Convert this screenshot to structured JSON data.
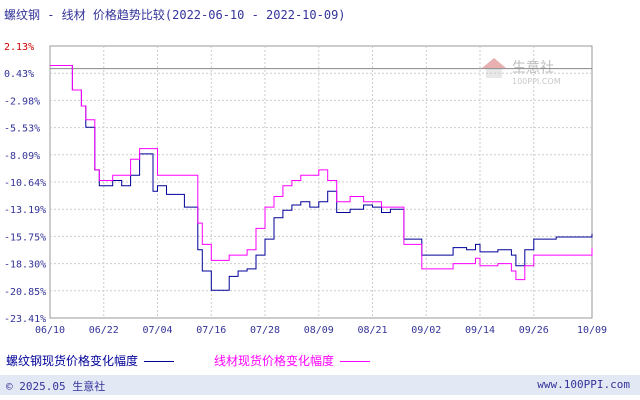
{
  "header": {
    "title": "螺纹钢 - 线材 价格趋势比较(2022-06-10 - 2022-10-09)"
  },
  "watermark": {
    "brand": "生意社",
    "url": "100PPI.COM"
  },
  "footer": {
    "copyright": "© 2025.05 生意社",
    "site": "www.100PPI.com"
  },
  "colors": {
    "series1": "#000099",
    "series2": "#ff00ff",
    "text": "#333399",
    "grid": "#cccccc",
    "zero_tick": "#cc0000"
  },
  "chart_data": {
    "type": "line",
    "title": "螺纹钢 - 线材 价格趋势比较(2022-06-10 - 2022-10-09)",
    "x_ticks": [
      "06/10",
      "06/22",
      "07/04",
      "07/16",
      "07/28",
      "08/09",
      "08/21",
      "09/02",
      "09/14",
      "09/26",
      "10/09"
    ],
    "y_ticks": [
      "2.13%",
      "0.43%",
      "-2.98%",
      "-5.53%",
      "-8.09%",
      "-10.64%",
      "-13.19%",
      "-15.75%",
      "-18.30%",
      "-20.85%",
      "-23.41%"
    ],
    "ylim": [
      -23.41,
      2.13
    ],
    "xlim": [
      "2022-06-10",
      "2022-10-09"
    ],
    "grid": true,
    "legend": "bottom",
    "series": [
      {
        "name": "螺纹钢现货价格变化幅度",
        "x": [
          "2022-06-10",
          "2022-06-13",
          "2022-06-15",
          "2022-06-17",
          "2022-06-18",
          "2022-06-19",
          "2022-06-20",
          "2022-06-21",
          "2022-06-24",
          "2022-06-26",
          "2022-06-28",
          "2022-06-30",
          "2022-07-02",
          "2022-07-03",
          "2022-07-04",
          "2022-07-06",
          "2022-07-08",
          "2022-07-10",
          "2022-07-13",
          "2022-07-14",
          "2022-07-16",
          "2022-07-18",
          "2022-07-20",
          "2022-07-22",
          "2022-07-24",
          "2022-07-26",
          "2022-07-28",
          "2022-07-30",
          "2022-08-01",
          "2022-08-03",
          "2022-08-05",
          "2022-08-07",
          "2022-08-09",
          "2022-08-11",
          "2022-08-13",
          "2022-08-16",
          "2022-08-19",
          "2022-08-21",
          "2022-08-23",
          "2022-08-25",
          "2022-08-28",
          "2022-09-01",
          "2022-09-04",
          "2022-09-08",
          "2022-09-11",
          "2022-09-13",
          "2022-09-14",
          "2022-09-18",
          "2022-09-21",
          "2022-09-22",
          "2022-09-24",
          "2022-09-26",
          "2022-10-01",
          "2022-10-05",
          "2022-10-09"
        ],
        "values": [
          0.3,
          0.3,
          -2.0,
          -3.5,
          -5.5,
          -5.5,
          -9.5,
          -11.0,
          -10.5,
          -11.0,
          -10.0,
          -8.0,
          -8.0,
          -11.5,
          -11.0,
          -11.8,
          -11.8,
          -13.0,
          -17.0,
          -19.0,
          -20.8,
          -20.8,
          -19.5,
          -19.0,
          -18.8,
          -17.5,
          -16.0,
          -14.0,
          -13.3,
          -12.8,
          -12.5,
          -13.0,
          -12.5,
          -11.5,
          -13.5,
          -13.2,
          -12.8,
          -13.0,
          -13.5,
          -13.2,
          -16.0,
          -17.5,
          -17.5,
          -16.8,
          -17.0,
          -16.5,
          -17.2,
          -17.0,
          -17.5,
          -18.5,
          -17.0,
          -16.0,
          -15.8,
          -15.8,
          -15.5
        ]
      },
      {
        "name": "线材现货价格变化幅度",
        "x": [
          "2022-06-10",
          "2022-06-13",
          "2022-06-15",
          "2022-06-17",
          "2022-06-18",
          "2022-06-19",
          "2022-06-20",
          "2022-06-21",
          "2022-06-24",
          "2022-06-26",
          "2022-06-28",
          "2022-06-30",
          "2022-07-02",
          "2022-07-04",
          "2022-07-06",
          "2022-07-08",
          "2022-07-10",
          "2022-07-13",
          "2022-07-14",
          "2022-07-16",
          "2022-07-18",
          "2022-07-20",
          "2022-07-22",
          "2022-07-24",
          "2022-07-26",
          "2022-07-28",
          "2022-07-30",
          "2022-08-01",
          "2022-08-03",
          "2022-08-05",
          "2022-08-07",
          "2022-08-09",
          "2022-08-11",
          "2022-08-13",
          "2022-08-16",
          "2022-08-19",
          "2022-08-21",
          "2022-08-23",
          "2022-08-25",
          "2022-08-28",
          "2022-09-01",
          "2022-09-04",
          "2022-09-08",
          "2022-09-11",
          "2022-09-13",
          "2022-09-14",
          "2022-09-18",
          "2022-09-21",
          "2022-09-22",
          "2022-09-24",
          "2022-09-26",
          "2022-10-01",
          "2022-10-05",
          "2022-10-09"
        ],
        "values": [
          0.3,
          0.3,
          -2.0,
          -3.5,
          -4.8,
          -4.8,
          -9.5,
          -10.5,
          -10.0,
          -10.0,
          -8.5,
          -7.5,
          -7.5,
          -10.0,
          -10.0,
          -10.0,
          -10.0,
          -14.5,
          -16.5,
          -18.0,
          -18.0,
          -17.5,
          -17.5,
          -17.0,
          -15.0,
          -13.0,
          -12.0,
          -11.0,
          -10.5,
          -10.0,
          -10.0,
          -9.5,
          -10.5,
          -12.5,
          -12.0,
          -12.5,
          -12.5,
          -13.0,
          -13.0,
          -16.5,
          -18.8,
          -18.8,
          -18.3,
          -18.3,
          -17.8,
          -18.5,
          -18.3,
          -19.0,
          -19.8,
          -18.5,
          -17.5,
          -17.5,
          -17.5,
          -16.8
        ]
      }
    ]
  }
}
